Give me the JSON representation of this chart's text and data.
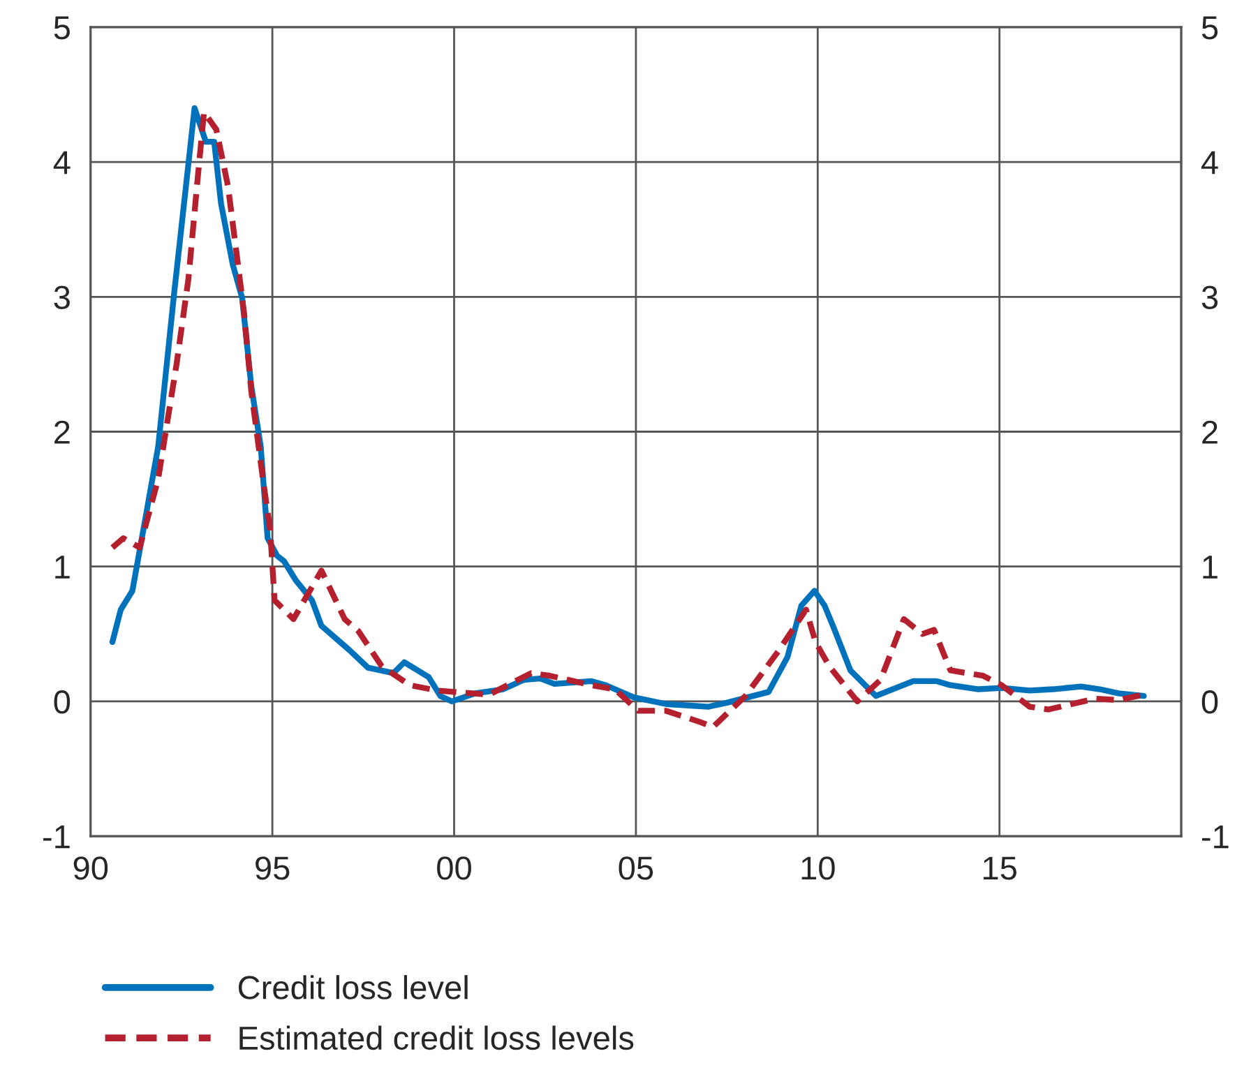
{
  "chart_data": {
    "type": "line",
    "xlim": [
      1990,
      2020
    ],
    "xticks": [
      {
        "value": 1990,
        "label": "90"
      },
      {
        "value": 1995,
        "label": "95"
      },
      {
        "value": 2000,
        "label": "00"
      },
      {
        "value": 2005,
        "label": "05"
      },
      {
        "value": 2010,
        "label": "10"
      },
      {
        "value": 2015,
        "label": "15"
      },
      {
        "value": 2020,
        "label": null
      }
    ],
    "ylim": [
      -1,
      5
    ],
    "yticks": [
      -1,
      0,
      1,
      2,
      3,
      4,
      5
    ],
    "y2lim": [
      -1,
      5
    ],
    "y2ticks": [
      -1,
      0,
      1,
      2,
      3,
      4,
      5
    ],
    "grid": true,
    "legend": "bottom",
    "series": [
      {
        "name": "Credit loss level",
        "color": "#0072bc",
        "line_style": "solid",
        "x": [
          1990.6,
          1990.83,
          1991.15,
          1991.47,
          1991.86,
          1992.3,
          1992.86,
          1993.17,
          1993.4,
          1993.59,
          1993.91,
          1994.17,
          1994.42,
          1994.68,
          1994.87,
          1995.13,
          1995.32,
          1995.64,
          1996.09,
          1996.35,
          1997.12,
          1997.63,
          1998.33,
          1998.63,
          1999.3,
          1999.62,
          1999.94,
          2000.58,
          2001.35,
          2001.92,
          2002.37,
          2002.76,
          2003.78,
          2004.17,
          2004.94,
          2005.83,
          2006.99,
          2007.5,
          2008.65,
          2009.17,
          2009.55,
          2009.91,
          2010.19,
          2010.45,
          2010.9,
          2011.6,
          2012.63,
          2013.27,
          2013.65,
          2014.42,
          2015.06,
          2015.83,
          2016.47,
          2017.24,
          2017.76,
          2018.27,
          2018.97
        ],
        "values": [
          0.44,
          0.68,
          0.82,
          1.3,
          1.89,
          3.03,
          4.4,
          4.15,
          4.15,
          3.69,
          3.24,
          2.99,
          2.34,
          1.89,
          1.21,
          1.08,
          1.04,
          0.9,
          0.75,
          0.56,
          0.38,
          0.25,
          0.21,
          0.29,
          0.18,
          0.04,
          0.0,
          0.06,
          0.09,
          0.16,
          0.17,
          0.13,
          0.15,
          0.12,
          0.03,
          -0.02,
          -0.04,
          -0.01,
          0.07,
          0.33,
          0.71,
          0.82,
          0.71,
          0.54,
          0.23,
          0.04,
          0.15,
          0.15,
          0.12,
          0.09,
          0.1,
          0.08,
          0.09,
          0.11,
          0.09,
          0.06,
          0.04
        ]
      },
      {
        "name": "Estimated credit loss levels",
        "color": "#b5202e",
        "line_style": "dashed",
        "x": [
          1990.6,
          1990.9,
          1991.35,
          1991.86,
          1992.37,
          1992.69,
          1992.95,
          1993.12,
          1993.46,
          1993.78,
          1994.04,
          1994.23,
          1994.42,
          1994.74,
          1994.94,
          1995.06,
          1995.58,
          1996.35,
          1996.99,
          1997.37,
          1998.01,
          1998.78,
          1999.55,
          2000.96,
          2002.12,
          2002.63,
          2003.78,
          2004.42,
          2005.06,
          2005.83,
          2006.73,
          2007.12,
          2008.01,
          2008.91,
          2009.68,
          2009.94,
          2010.32,
          2011.09,
          2011.73,
          2012.37,
          2012.88,
          2013.2,
          2013.65,
          2014.55,
          2015.06,
          2015.83,
          2016.35,
          2016.99,
          2017.63,
          2018.27,
          2018.97
        ],
        "values": [
          1.14,
          1.21,
          1.14,
          1.65,
          2.51,
          3.13,
          3.89,
          4.37,
          4.24,
          3.82,
          3.27,
          2.86,
          2.3,
          1.65,
          1.27,
          0.75,
          0.61,
          0.97,
          0.61,
          0.52,
          0.26,
          0.12,
          0.08,
          0.05,
          0.21,
          0.19,
          0.12,
          0.09,
          -0.07,
          -0.07,
          -0.15,
          -0.19,
          0.04,
          0.37,
          0.68,
          0.44,
          0.26,
          0.0,
          0.16,
          0.61,
          0.5,
          0.53,
          0.23,
          0.19,
          0.12,
          -0.04,
          -0.06,
          -0.02,
          0.02,
          0.01,
          0.05
        ]
      }
    ]
  }
}
